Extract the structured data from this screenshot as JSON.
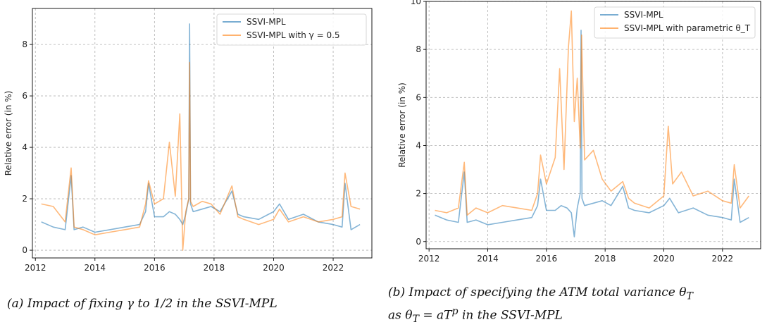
{
  "chart_data": [
    {
      "type": "line",
      "title": "",
      "caption": "(a) Impact of fixing γ to 1/2 in the SSVI-MPL",
      "xlabel": "",
      "ylabel": "Relative error (in %)",
      "xlim": [
        2011.9,
        2023.3
      ],
      "ylim": [
        -0.3,
        9.4
      ],
      "xticks": [
        "2012",
        "2014",
        "2016",
        "2018",
        "2020",
        "2022"
      ],
      "yticks": [
        "0",
        "2",
        "4",
        "6",
        "8"
      ],
      "grid": true,
      "legend_position": "top-right",
      "series": [
        {
          "name": "SSVI-MPL",
          "color": "#1f77b4",
          "x": [
            2012.2,
            2012.6,
            2013.0,
            2013.2,
            2013.3,
            2013.6,
            2014.0,
            2014.5,
            2015.0,
            2015.5,
            2015.7,
            2015.8,
            2016.0,
            2016.3,
            2016.5,
            2016.7,
            2016.85,
            2016.95,
            2017.05,
            2017.15,
            2017.18,
            2017.21,
            2017.3,
            2017.6,
            2017.9,
            2018.2,
            2018.6,
            2018.8,
            2019.0,
            2019.5,
            2020.0,
            2020.2,
            2020.5,
            2021.0,
            2021.5,
            2022.0,
            2022.3,
            2022.4,
            2022.6,
            2022.9
          ],
          "y": [
            1.1,
            0.9,
            0.8,
            2.9,
            0.8,
            0.9,
            0.7,
            0.8,
            0.9,
            1.0,
            1.5,
            2.6,
            1.3,
            1.3,
            1.5,
            1.4,
            1.2,
            1.0,
            1.4,
            2.0,
            8.8,
            1.8,
            1.5,
            1.6,
            1.7,
            1.5,
            2.3,
            1.4,
            1.3,
            1.2,
            1.5,
            1.8,
            1.2,
            1.4,
            1.1,
            1.0,
            0.9,
            2.6,
            0.8,
            1.0
          ]
        },
        {
          "name": "SSVI-MPL with γ = 0.5",
          "color": "#ff7f0e",
          "x": [
            2012.2,
            2012.6,
            2013.0,
            2013.2,
            2013.3,
            2013.6,
            2014.0,
            2014.5,
            2015.0,
            2015.5,
            2015.7,
            2015.8,
            2016.0,
            2016.3,
            2016.5,
            2016.7,
            2016.85,
            2016.95,
            2017.05,
            2017.15,
            2017.18,
            2017.21,
            2017.3,
            2017.6,
            2017.9,
            2018.2,
            2018.6,
            2018.8,
            2019.0,
            2019.5,
            2020.0,
            2020.2,
            2020.5,
            2021.0,
            2021.5,
            2022.0,
            2022.3,
            2022.4,
            2022.6,
            2022.9
          ],
          "y": [
            1.8,
            1.7,
            1.1,
            3.2,
            0.9,
            0.8,
            0.6,
            0.7,
            0.8,
            0.9,
            1.8,
            2.7,
            1.8,
            2.0,
            4.2,
            2.1,
            5.3,
            0.0,
            1.5,
            2.0,
            7.3,
            1.9,
            1.7,
            1.9,
            1.8,
            1.4,
            2.5,
            1.3,
            1.2,
            1.0,
            1.2,
            1.6,
            1.1,
            1.3,
            1.1,
            1.2,
            1.3,
            3.0,
            1.7,
            1.6
          ]
        }
      ]
    },
    {
      "type": "line",
      "title": "",
      "caption_line1": "(b) Impact of specifying the ATM total variance θ",
      "caption_line1_sub": "T",
      "caption_line2": "as θ",
      "caption_line2_sub": "T",
      "caption_line2_rest": " = aT",
      "caption_line2_sup": "p",
      "caption_line2_end": " in the SSVI-MPL",
      "xlabel": "",
      "ylabel": "Relative error (in %)",
      "xlim": [
        2011.9,
        2023.3
      ],
      "ylim": [
        -0.3,
        10.0
      ],
      "xticks": [
        "2012",
        "2014",
        "2016",
        "2018",
        "2020",
        "2022"
      ],
      "yticks": [
        "0",
        "2",
        "4",
        "6",
        "8",
        "10"
      ],
      "grid": true,
      "legend_position": "top-right",
      "series": [
        {
          "name": "SSVI-MPL",
          "color": "#1f77b4",
          "x": [
            2012.2,
            2012.6,
            2013.0,
            2013.2,
            2013.3,
            2013.6,
            2014.0,
            2014.5,
            2015.0,
            2015.5,
            2015.7,
            2015.8,
            2016.0,
            2016.3,
            2016.5,
            2016.7,
            2016.85,
            2016.95,
            2017.05,
            2017.15,
            2017.18,
            2017.21,
            2017.3,
            2017.6,
            2017.9,
            2018.2,
            2018.6,
            2018.8,
            2019.0,
            2019.5,
            2020.0,
            2020.2,
            2020.5,
            2021.0,
            2021.5,
            2022.0,
            2022.3,
            2022.4,
            2022.6,
            2022.9
          ],
          "y": [
            1.1,
            0.9,
            0.8,
            2.9,
            0.8,
            0.9,
            0.7,
            0.8,
            0.9,
            1.0,
            1.5,
            2.6,
            1.3,
            1.3,
            1.5,
            1.4,
            1.2,
            0.2,
            1.4,
            2.0,
            8.8,
            1.8,
            1.5,
            1.6,
            1.7,
            1.5,
            2.3,
            1.4,
            1.3,
            1.2,
            1.5,
            1.8,
            1.2,
            1.4,
            1.1,
            1.0,
            0.9,
            2.6,
            0.8,
            1.0
          ]
        },
        {
          "name": "SSVI-MPL with parametric θ_T",
          "color": "#ff7f0e",
          "x": [
            2012.2,
            2012.6,
            2013.0,
            2013.2,
            2013.3,
            2013.6,
            2014.0,
            2014.5,
            2015.0,
            2015.5,
            2015.7,
            2015.8,
            2016.0,
            2016.3,
            2016.45,
            2016.6,
            2016.75,
            2016.85,
            2016.95,
            2017.05,
            2017.15,
            2017.2,
            2017.3,
            2017.6,
            2017.9,
            2018.2,
            2018.6,
            2018.8,
            2019.0,
            2019.5,
            2020.0,
            2020.15,
            2020.3,
            2020.6,
            2021.0,
            2021.5,
            2022.0,
            2022.3,
            2022.4,
            2022.6,
            2022.9
          ],
          "y": [
            1.3,
            1.2,
            1.4,
            3.3,
            1.1,
            1.4,
            1.2,
            1.5,
            1.4,
            1.3,
            2.0,
            3.6,
            2.4,
            3.5,
            7.2,
            3.0,
            8.1,
            9.6,
            5.0,
            6.8,
            3.9,
            8.6,
            3.4,
            3.8,
            2.6,
            2.1,
            2.5,
            1.8,
            1.6,
            1.4,
            1.9,
            4.8,
            2.4,
            2.9,
            1.9,
            2.1,
            1.7,
            1.6,
            3.2,
            1.4,
            1.9
          ]
        }
      ]
    }
  ]
}
